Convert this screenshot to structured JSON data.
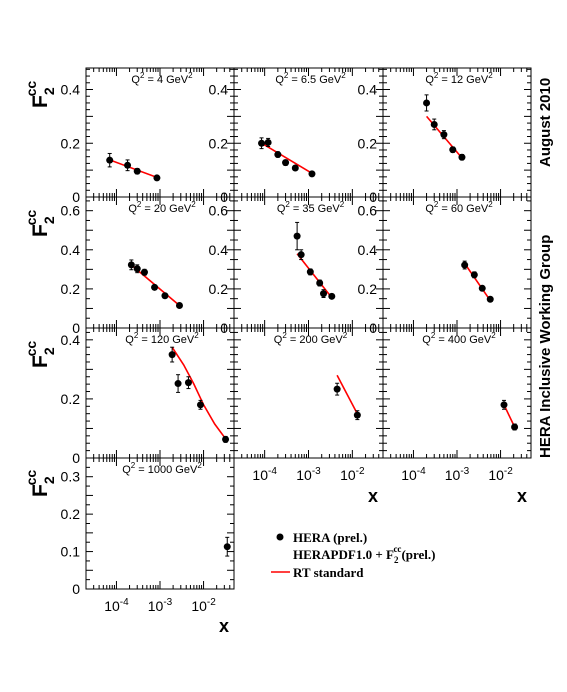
{
  "side_title": "August 2010",
  "side_subtitle": "HERA Inclusive Working Group",
  "ylabel": {
    "main": "F",
    "sup": "cc",
    "sub": "2"
  },
  "xlabel": "x",
  "chart_data": {
    "type": "scatter",
    "x_scale": "log",
    "xlim": [
      2e-05,
      0.05
    ],
    "grid": false,
    "legend_position": "bottom-right",
    "legend": {
      "data_label": "HERA (prel.)",
      "theory_label_prefix": "HERAPDF1.0 + F",
      "theory_label_sup": "cc",
      "theory_label_sub": "2",
      "theory_label_suffix": "(prel.)",
      "curve_label": "RT standard"
    },
    "colors": {
      "data": "#000000",
      "theory": "#ff0000"
    },
    "x_tick_labels": [
      {
        "base": "10",
        "exp": "-4"
      },
      {
        "base": "10",
        "exp": "-3"
      },
      {
        "base": "10",
        "exp": "-2"
      }
    ],
    "panels": [
      {
        "label": "Q",
        "label_exp": "2",
        "label_eq": " =  4 GeV",
        "label_unit_exp": "2",
        "ylim": [
          0,
          0.48
        ],
        "yticks": [
          "0",
          "0.2",
          "0.4"
        ],
        "points": [
          {
            "x": 7e-05,
            "y": 0.137,
            "err": 0.025
          },
          {
            "x": 0.00018,
            "y": 0.118,
            "err": 0.02
          },
          {
            "x": 0.0003,
            "y": 0.096,
            "err": 0.01
          },
          {
            "x": 0.00085,
            "y": 0.071,
            "err": 0.008
          }
        ],
        "curve": [
          {
            "x": 6.5e-05,
            "y": 0.14
          },
          {
            "x": 0.00085,
            "y": 0.073
          }
        ]
      },
      {
        "label": "Q",
        "label_exp": "2",
        "label_eq": " = 6.5 GeV",
        "label_unit_exp": "2",
        "ylim": [
          0,
          0.48
        ],
        "yticks": [
          "0",
          "0.2",
          "0.4"
        ],
        "points": [
          {
            "x": 8.5e-05,
            "y": 0.2,
            "err": 0.02
          },
          {
            "x": 0.00012,
            "y": 0.203,
            "err": 0.015
          },
          {
            "x": 0.0002,
            "y": 0.158,
            "err": 0.01
          },
          {
            "x": 0.0003,
            "y": 0.128,
            "err": 0.01
          },
          {
            "x": 0.0005,
            "y": 0.108,
            "err": 0.008
          },
          {
            "x": 0.0012,
            "y": 0.086,
            "err": 0.007
          }
        ],
        "curve": [
          {
            "x": 8e-05,
            "y": 0.203
          },
          {
            "x": 0.0012,
            "y": 0.088
          }
        ]
      },
      {
        "label": "Q",
        "label_exp": "2",
        "label_eq": " = 12 GeV",
        "label_unit_exp": "2",
        "ylim": [
          0,
          0.48
        ],
        "yticks": [
          "0",
          "0.2",
          "0.4"
        ],
        "points": [
          {
            "x": 0.0002,
            "y": 0.35,
            "err": 0.03
          },
          {
            "x": 0.0003,
            "y": 0.27,
            "err": 0.02
          },
          {
            "x": 0.0005,
            "y": 0.232,
            "err": 0.015
          },
          {
            "x": 0.0008,
            "y": 0.176,
            "err": 0.01
          },
          {
            "x": 0.0013,
            "y": 0.148,
            "err": 0.01
          }
        ],
        "curve": [
          {
            "x": 0.0002,
            "y": 0.3
          },
          {
            "x": 0.0013,
            "y": 0.145
          }
        ]
      },
      {
        "label": "Q",
        "label_exp": "2",
        "label_eq": " = 20 GeV",
        "label_unit_exp": "2",
        "ylim": [
          0,
          0.67
        ],
        "yticks": [
          "0",
          "0.2",
          "0.4",
          "0.6"
        ],
        "points": [
          {
            "x": 0.00022,
            "y": 0.323,
            "err": 0.025
          },
          {
            "x": 0.0003,
            "y": 0.303,
            "err": 0.02
          },
          {
            "x": 0.00044,
            "y": 0.285,
            "err": 0.015
          },
          {
            "x": 0.00075,
            "y": 0.208,
            "err": 0.012
          },
          {
            "x": 0.0013,
            "y": 0.165,
            "err": 0.01
          },
          {
            "x": 0.0028,
            "y": 0.115,
            "err": 0.008
          }
        ],
        "curve": [
          {
            "x": 0.0002,
            "y": 0.33
          },
          {
            "x": 0.0028,
            "y": 0.115
          }
        ]
      },
      {
        "label": "Q",
        "label_exp": "2",
        "label_eq": " = 35 GeV",
        "label_unit_exp": "2",
        "ylim": [
          0,
          0.67
        ],
        "yticks": [
          "0",
          "0.2",
          "0.4",
          "0.6"
        ],
        "points": [
          {
            "x": 0.00055,
            "y": 0.47,
            "err": 0.07
          },
          {
            "x": 0.00068,
            "y": 0.375,
            "err": 0.025
          },
          {
            "x": 0.0011,
            "y": 0.287,
            "err": 0.015
          },
          {
            "x": 0.0018,
            "y": 0.23,
            "err": 0.015
          },
          {
            "x": 0.0022,
            "y": 0.176,
            "err": 0.02
          },
          {
            "x": 0.0034,
            "y": 0.162,
            "err": 0.01
          }
        ],
        "curve": [
          {
            "x": 0.00055,
            "y": 0.38
          },
          {
            "x": 0.0034,
            "y": 0.155
          }
        ]
      },
      {
        "label": "Q",
        "label_exp": "2",
        "label_eq": " = 60 GeV",
        "label_unit_exp": "2",
        "ylim": [
          0,
          0.67
        ],
        "yticks": [
          "0",
          "0.2",
          "0.4",
          "0.6"
        ],
        "points": [
          {
            "x": 0.0015,
            "y": 0.322,
            "err": 0.02
          },
          {
            "x": 0.0025,
            "y": 0.272,
            "err": 0.015
          },
          {
            "x": 0.0038,
            "y": 0.203,
            "err": 0.012
          },
          {
            "x": 0.0058,
            "y": 0.147,
            "err": 0.01
          }
        ],
        "curve": [
          {
            "x": 0.0015,
            "y": 0.33
          },
          {
            "x": 0.0058,
            "y": 0.14
          }
        ]
      },
      {
        "label": "Q",
        "label_exp": "2",
        "label_eq": " = 120 GeV",
        "label_unit_exp": "2",
        "ylim": [
          0,
          0.44
        ],
        "yticks": [
          "0",
          "0.2",
          "0.4"
        ],
        "points": [
          {
            "x": 0.0019,
            "y": 0.35,
            "err": 0.025
          },
          {
            "x": 0.0026,
            "y": 0.252,
            "err": 0.03
          },
          {
            "x": 0.0045,
            "y": 0.255,
            "err": 0.02
          },
          {
            "x": 0.0085,
            "y": 0.18,
            "err": 0.015
          },
          {
            "x": 0.032,
            "y": 0.063,
            "err": 0.01
          }
        ],
        "curve": [
          {
            "x": 0.0019,
            "y": 0.375
          },
          {
            "x": 0.0035,
            "y": 0.315
          },
          {
            "x": 0.006,
            "y": 0.25
          },
          {
            "x": 0.01,
            "y": 0.18
          },
          {
            "x": 0.018,
            "y": 0.115
          },
          {
            "x": 0.032,
            "y": 0.065
          }
        ]
      },
      {
        "label": "Q",
        "label_exp": "2",
        "label_eq": " = 200 GeV",
        "label_unit_exp": "2",
        "ylim": [
          0,
          0.44
        ],
        "yticks": [],
        "points": [
          {
            "x": 0.0045,
            "y": 0.233,
            "err": 0.02
          },
          {
            "x": 0.013,
            "y": 0.145,
            "err": 0.015
          }
        ],
        "curve": [
          {
            "x": 0.0045,
            "y": 0.28
          },
          {
            "x": 0.013,
            "y": 0.15
          }
        ]
      },
      {
        "label": "Q",
        "label_exp": "2",
        "label_eq": " = 400 GeV",
        "label_unit_exp": "2",
        "ylim": [
          0,
          0.44
        ],
        "yticks": [],
        "points": [
          {
            "x": 0.012,
            "y": 0.18,
            "err": 0.015
          },
          {
            "x": 0.021,
            "y": 0.105,
            "err": 0.01
          }
        ],
        "curve": [
          {
            "x": 0.012,
            "y": 0.18
          },
          {
            "x": 0.021,
            "y": 0.105
          }
        ]
      },
      {
        "label": "Q",
        "label_exp": "2",
        "label_eq": " = 1000 GeV",
        "label_unit_exp": "2",
        "ylim": [
          0,
          0.35
        ],
        "yticks": [
          "0",
          "0.1",
          "0.2",
          "0.3"
        ],
        "points": [
          {
            "x": 0.035,
            "y": 0.113,
            "err": 0.025
          }
        ],
        "curve": []
      }
    ]
  }
}
